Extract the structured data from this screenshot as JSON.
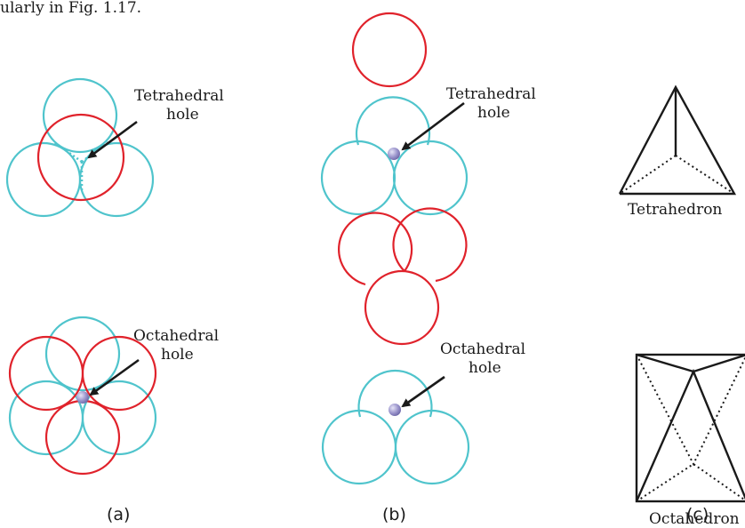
{
  "header": {
    "fragment": "ularly in Fig. 1.17."
  },
  "labels": {
    "tetra_hole_a": [
      "Tetrahedral",
      "hole"
    ],
    "octa_hole_a": [
      "Octahedral",
      "hole"
    ],
    "tetra_hole_b": [
      "Tetrahedral",
      "hole"
    ],
    "octa_hole_b": [
      "Octahedral",
      "hole"
    ],
    "tetrahedron": "Tetrahedron",
    "octahedron": "Octahedron"
  },
  "captions": {
    "a": "(a)",
    "b": "(b)",
    "c": "(c)"
  },
  "colors": {
    "bottom_layer": "#4fc4cc",
    "top_layer": "#e0222b",
    "void_atom": "#9b95cc",
    "lines": "#1a1a1a"
  }
}
